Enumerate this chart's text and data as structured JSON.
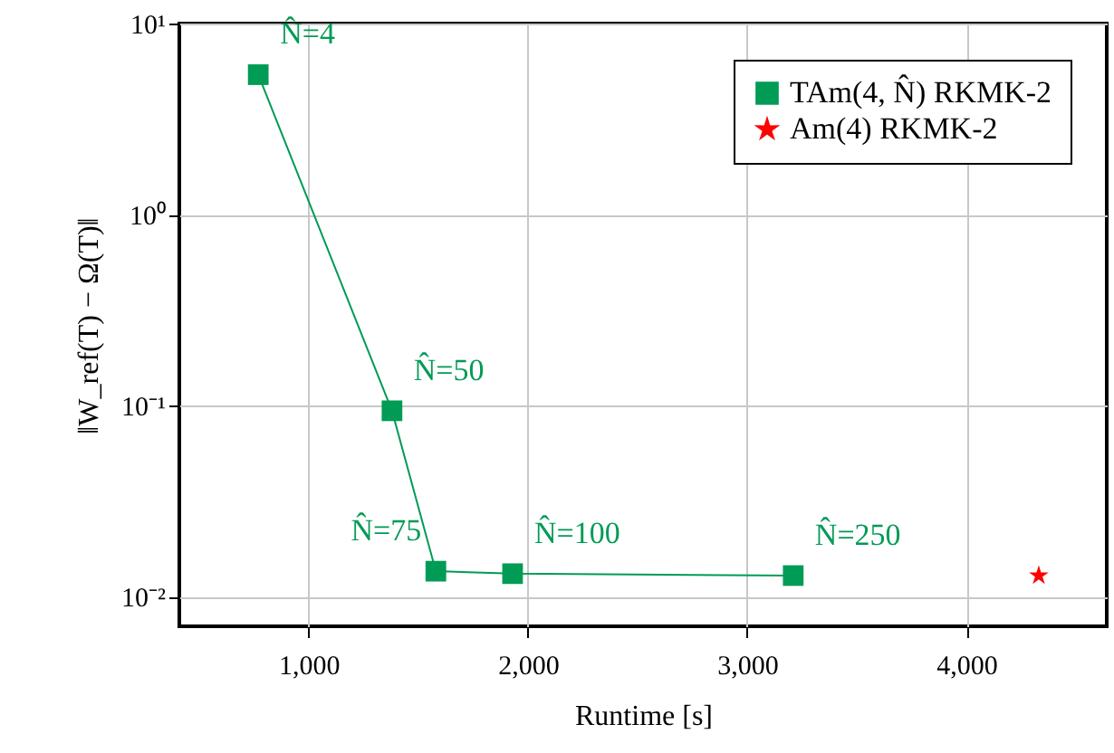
{
  "chart_data": {
    "type": "line",
    "xlabel": "Runtime [s]",
    "ylabel": "‖W_ref(T) − Ω(T)‖",
    "series": [
      {
        "name": "TAm(4, N̂) RKMK-2",
        "color": "#009b55",
        "marker": "square",
        "x": [
          770,
          1380,
          1580,
          1930,
          3210
        ],
        "values": [
          5.4,
          0.094,
          0.0136,
          0.0132,
          0.0129
        ]
      },
      {
        "name": "Am(4) RKMK-2",
        "color": "#ff0000",
        "marker": "star",
        "x": [
          4330
        ],
        "values": [
          0.0129
        ]
      }
    ],
    "annotations": [
      {
        "text": "N̂=4",
        "x": 770,
        "y": 5.4
      },
      {
        "text": "N̂=50",
        "x": 1380,
        "y": 0.094
      },
      {
        "text": "N̂=75",
        "x": 1580,
        "y": 0.0136
      },
      {
        "text": "N̂=100",
        "x": 1930,
        "y": 0.0132
      },
      {
        "text": "N̂=250",
        "x": 3210,
        "y": 0.0129
      }
    ],
    "xlim": [
      410,
      4640
    ],
    "xticks": [
      {
        "value": 1000,
        "label": "1,000"
      },
      {
        "value": 2000,
        "label": "2,000"
      },
      {
        "value": 3000,
        "label": "3,000"
      },
      {
        "value": 4000,
        "label": "4,000"
      }
    ],
    "ylim": [
      0.007,
      10
    ],
    "yticks": [
      {
        "value": 0.01,
        "label": "10⁻²"
      },
      {
        "value": 0.1,
        "label": "10⁻¹"
      },
      {
        "value": 1,
        "label": "10⁰"
      },
      {
        "value": 10,
        "label": "10¹"
      }
    ],
    "log": "y",
    "grid": true,
    "legend": "top right"
  }
}
